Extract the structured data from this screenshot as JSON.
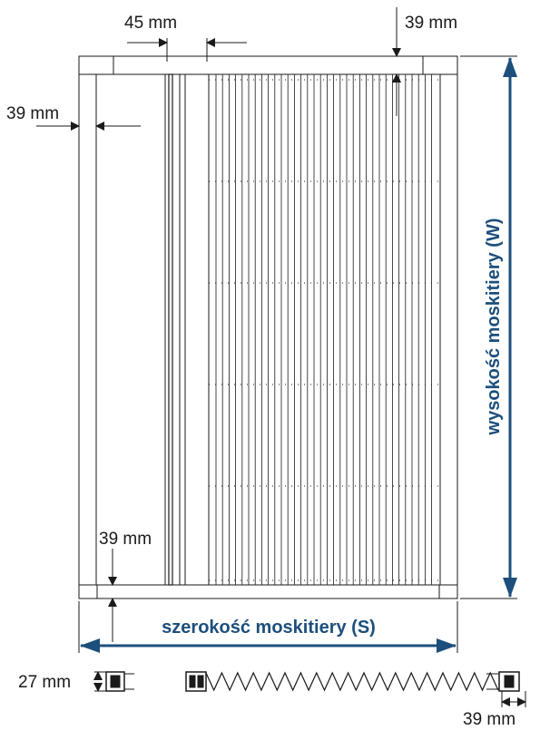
{
  "dimensions": {
    "top_rail_offset": "45 mm",
    "top_rail_height": "39 mm",
    "side_profile_width": "39 mm",
    "bottom_rail_height": "39 mm",
    "section_depth": "27 mm",
    "section_end_width": "39 mm"
  },
  "labels": {
    "height": "wysokość moskitiery (W)",
    "width": "szerokość moskitiery (S)"
  },
  "colors": {
    "accent": "#1d4f7c",
    "line": "#1a1a1a"
  }
}
